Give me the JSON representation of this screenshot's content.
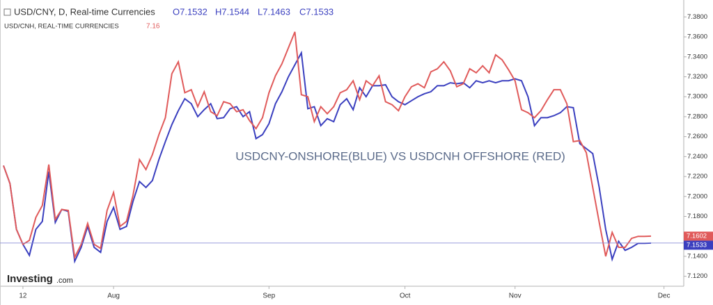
{
  "chart_data": {
    "type": "line",
    "title": "USD/CNY, D, Real-time Currencies",
    "ohlc": [
      "O7.1532",
      "H7.1544",
      "L7.1463",
      "C7.1533"
    ],
    "subtitle": "USD/CNH, REAL-TIME CURRENCIES",
    "subtitle_value": "7.16",
    "annotation": "USDCNY-ONSHORE(BLUE) VS USDCNH OFFSHORE (RED)",
    "logo": [
      "Investing",
      ".com"
    ],
    "categories": [
      null,
      null,
      null,
      "12",
      null,
      null,
      null,
      null,
      null,
      null,
      null,
      null,
      null,
      null,
      null,
      null,
      null,
      "Aug",
      null,
      null,
      null,
      null,
      null,
      null,
      null,
      null,
      null,
      null,
      null,
      null,
      null,
      null,
      null,
      null,
      null,
      null,
      null,
      null,
      null,
      null,
      null,
      "Sep",
      null,
      null,
      null,
      null,
      null,
      null,
      null,
      null,
      null,
      null,
      null,
      null,
      null,
      null,
      null,
      null,
      null,
      null,
      null,
      null,
      "Oct",
      null,
      null,
      null,
      null,
      null,
      null,
      null,
      null,
      null,
      null,
      null,
      null,
      null,
      null,
      null,
      null,
      "Nov",
      null,
      null,
      null,
      null,
      null,
      null,
      null,
      null,
      null,
      null,
      null,
      null,
      null,
      null,
      null,
      null,
      null,
      null,
      null,
      null,
      null,
      null,
      "Dec"
    ],
    "series": [
      {
        "name": "USD/CNY, D, Real-time Currencies",
        "color": "#3a3fbf",
        "values": [
          7.231,
          7.213,
          7.167,
          7.152,
          7.141,
          7.167,
          7.175,
          7.225,
          7.174,
          7.187,
          7.185,
          7.135,
          7.149,
          7.17,
          7.149,
          7.144,
          7.175,
          7.189,
          7.167,
          7.17,
          7.195,
          7.215,
          7.209,
          7.216,
          7.237,
          7.255,
          7.272,
          7.286,
          7.298,
          7.293,
          7.28,
          7.287,
          7.293,
          7.278,
          7.279,
          7.288,
          7.29,
          7.28,
          7.285,
          7.258,
          7.262,
          7.273,
          7.293,
          7.305,
          7.32,
          7.332,
          7.344,
          7.288,
          7.29,
          7.271,
          7.278,
          7.275,
          7.292,
          7.298,
          7.287,
          7.309,
          7.3,
          7.311,
          7.311,
          7.312,
          7.3,
          7.295,
          7.292,
          7.296,
          7.3,
          7.303,
          7.305,
          7.311,
          7.311,
          7.314,
          7.313,
          7.314,
          7.309,
          7.316,
          7.314,
          7.316,
          7.314,
          7.316,
          7.316,
          7.318,
          7.316,
          7.3,
          7.271,
          7.279,
          7.279,
          7.281,
          7.284,
          7.29,
          7.289,
          7.253,
          7.248,
          7.243,
          7.209,
          7.167,
          7.137,
          7.155,
          7.146,
          7.149,
          7.153,
          7.153,
          7.1533,
          null,
          null
        ]
      },
      {
        "name": "USD/CNH, REAL-TIME CURRENCIES",
        "color": "#e05a5a",
        "values": [
          7.231,
          7.213,
          7.167,
          7.152,
          7.156,
          7.179,
          7.191,
          7.232,
          7.177,
          7.187,
          7.186,
          7.139,
          7.152,
          7.173,
          7.152,
          7.148,
          7.186,
          7.204,
          7.17,
          7.175,
          7.201,
          7.237,
          7.227,
          7.242,
          7.262,
          7.279,
          7.323,
          7.335,
          7.304,
          7.307,
          7.29,
          7.305,
          7.285,
          7.281,
          7.295,
          7.293,
          7.285,
          7.287,
          7.276,
          7.268,
          7.279,
          7.304,
          7.321,
          7.333,
          7.349,
          7.365,
          7.302,
          7.3,
          7.275,
          7.29,
          7.283,
          7.29,
          7.304,
          7.307,
          7.316,
          7.297,
          7.316,
          7.311,
          7.321,
          7.295,
          7.292,
          7.286,
          7.3,
          7.31,
          7.313,
          7.309,
          7.325,
          7.328,
          7.335,
          7.326,
          7.31,
          7.313,
          7.328,
          7.324,
          7.331,
          7.324,
          7.342,
          7.337,
          7.327,
          7.316,
          7.287,
          7.284,
          7.279,
          7.286,
          7.297,
          7.307,
          7.307,
          7.293,
          7.255,
          7.256,
          7.244,
          7.209,
          7.174,
          7.14,
          7.164,
          7.149,
          7.149,
          7.158,
          7.16,
          7.16,
          7.1602,
          null,
          null
        ]
      }
    ],
    "ylim": [
      7.11,
      7.39
    ],
    "yticks": [
      {
        "value": 7.12,
        "label": "7.1200"
      },
      {
        "value": 7.14,
        "label": "7.1400"
      },
      {
        "value": 7.16,
        "label": "7.1600"
      },
      {
        "value": 7.18,
        "label": "7.1800"
      },
      {
        "value": 7.2,
        "label": "7.2000"
      },
      {
        "value": 7.22,
        "label": "7.2200"
      },
      {
        "value": 7.24,
        "label": "7.2400"
      },
      {
        "value": 7.26,
        "label": "7.2600"
      },
      {
        "value": 7.28,
        "label": "7.2800"
      },
      {
        "value": 7.3,
        "label": "7.3000"
      },
      {
        "value": 7.32,
        "label": "7.3200"
      },
      {
        "value": 7.34,
        "label": "7.3400"
      },
      {
        "value": 7.36,
        "label": "7.3600"
      },
      {
        "value": 7.38,
        "label": "7.3800"
      }
    ],
    "grid": false
  }
}
